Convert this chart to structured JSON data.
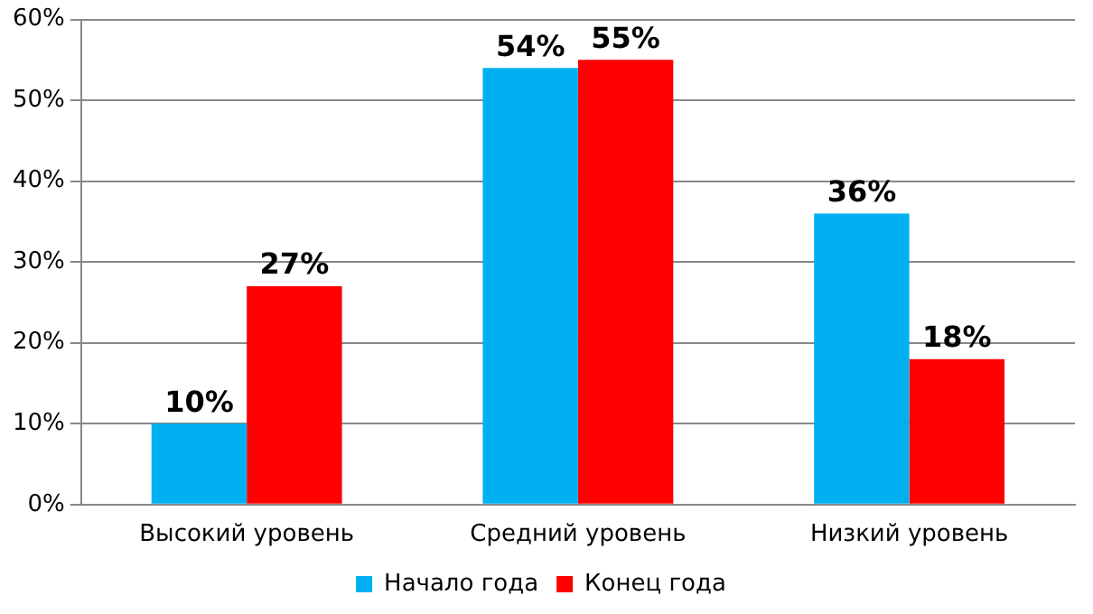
{
  "chart_data": {
    "type": "bar",
    "categories": [
      "Высокий уровень",
      "Средний уровень",
      "Низкий уровень"
    ],
    "series": [
      {
        "name": "Начало года",
        "color": "#00b0f0",
        "values": [
          10,
          54,
          36
        ],
        "value_labels": [
          "10%",
          "54%",
          "36%"
        ]
      },
      {
        "name": "Конец года",
        "color": "#ff0000",
        "values": [
          27,
          55,
          18
        ],
        "value_labels": [
          "27%",
          "55%",
          "18%"
        ]
      }
    ],
    "ylim": [
      0,
      60
    ],
    "yticks": [
      {
        "value": 0,
        "label": "0%"
      },
      {
        "value": 10,
        "label": "10%"
      },
      {
        "value": 20,
        "label": "20%"
      },
      {
        "value": 30,
        "label": "30%"
      },
      {
        "value": 40,
        "label": "40%"
      },
      {
        "value": 50,
        "label": "50%"
      },
      {
        "value": 60,
        "label": "60%"
      }
    ],
    "grid": "y",
    "legend": "bottom"
  }
}
